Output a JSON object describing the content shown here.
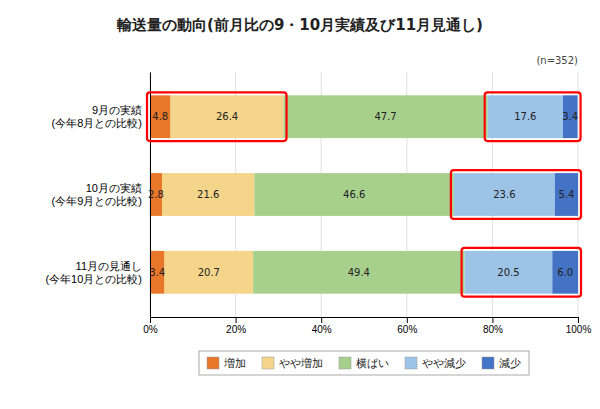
{
  "chart_data": {
    "type": "bar",
    "orientation": "horizontal",
    "stacked": true,
    "data_labels": true,
    "grid": true,
    "legend": "bottom",
    "title": "輸送量の動向(前月比の9・10月実績及び11月見通し)",
    "categories": [
      "9月の実績\n(今年8月との比較)",
      "10月の実績\n(今年9月との比較)",
      "11月の見通し\n(今年10月との比較)"
    ],
    "series": [
      {
        "name": "増加",
        "color": "#E8772A",
        "values": [
          4.8,
          2.8,
          3.4
        ],
        "value_labels": [
          "4.8",
          "2.8",
          "3.4"
        ]
      },
      {
        "name": "やや増加",
        "color": "#F5D58A",
        "values": [
          26.4,
          21.6,
          20.7
        ],
        "value_labels": [
          "26.4",
          "21.6",
          "20.7"
        ]
      },
      {
        "name": "横ばい",
        "color": "#A8D08D",
        "values": [
          47.7,
          46.6,
          49.4
        ],
        "value_labels": [
          "47.7",
          "46.6",
          "49.4"
        ]
      },
      {
        "name": "やや減少",
        "color": "#9DC3E6",
        "values": [
          17.6,
          23.6,
          20.5
        ],
        "value_labels": [
          "17.6",
          "23.6",
          "20.5"
        ]
      },
      {
        "name": "減少",
        "color": "#4472C4",
        "values": [
          3.4,
          5.4,
          6.0
        ],
        "value_labels": [
          "3.4",
          "5.4",
          "6.0"
        ]
      }
    ],
    "xlim": [
      0,
      100
    ],
    "xticks": [
      {
        "value": 0,
        "label": "0%"
      },
      {
        "value": 20,
        "label": "20%"
      },
      {
        "value": 40,
        "label": "40%"
      },
      {
        "value": 60,
        "label": "60%"
      },
      {
        "value": 80,
        "label": "80%"
      },
      {
        "value": 100,
        "label": "100%"
      }
    ],
    "annotations": [
      {
        "text": "(n=352)"
      },
      {
        "category": "9月の実績\n(今年8月との比較)",
        "series": [
          "増加",
          "やや増加"
        ],
        "color": "red"
      },
      {
        "category": "9月の実績\n(今年8月との比較)",
        "series": [
          "やや減少",
          "減少"
        ],
        "color": "red"
      },
      {
        "category": "10月の実績\n(今年9月との比較)",
        "series": [
          "やや減少",
          "減少"
        ],
        "color": "red"
      },
      {
        "category": "11月の見通し\n(今年10月との比較)",
        "series": [
          "やや減少",
          "減少"
        ],
        "color": "red"
      }
    ]
  }
}
